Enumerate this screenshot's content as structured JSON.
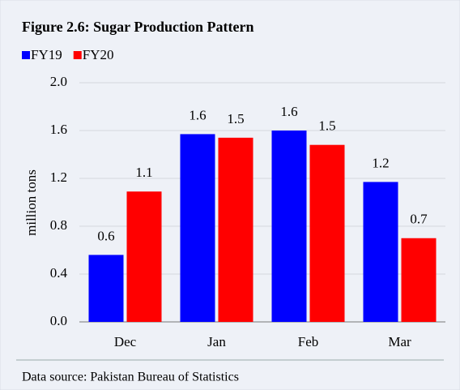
{
  "chart_data": {
    "type": "bar",
    "title": "Figure 2.6: Sugar Production Pattern",
    "y_label": "million tons",
    "source": "Data source: Pakistan Bureau of Statistics",
    "categories": [
      "Dec",
      "Jan",
      "Feb",
      "Mar"
    ],
    "series": [
      {
        "name": "FY19",
        "color": "#0000ff",
        "values": [
          0.56,
          1.57,
          1.6,
          1.17
        ],
        "value_labels": [
          "0.6",
          "1.6",
          "1.6",
          "1.2"
        ]
      },
      {
        "name": "FY20",
        "color": "#ff0000",
        "values": [
          1.09,
          1.54,
          1.48,
          0.7
        ],
        "value_labels": [
          "1.1",
          "1.5",
          "1.5",
          "0.7"
        ]
      }
    ],
    "ylim": [
      0,
      2
    ],
    "yticks": [
      {
        "value": 0,
        "label": "0.0"
      },
      0.4,
      0.8,
      1.2,
      1.6,
      {
        "value": 2,
        "label": "2.0"
      }
    ],
    "grid": true
  }
}
